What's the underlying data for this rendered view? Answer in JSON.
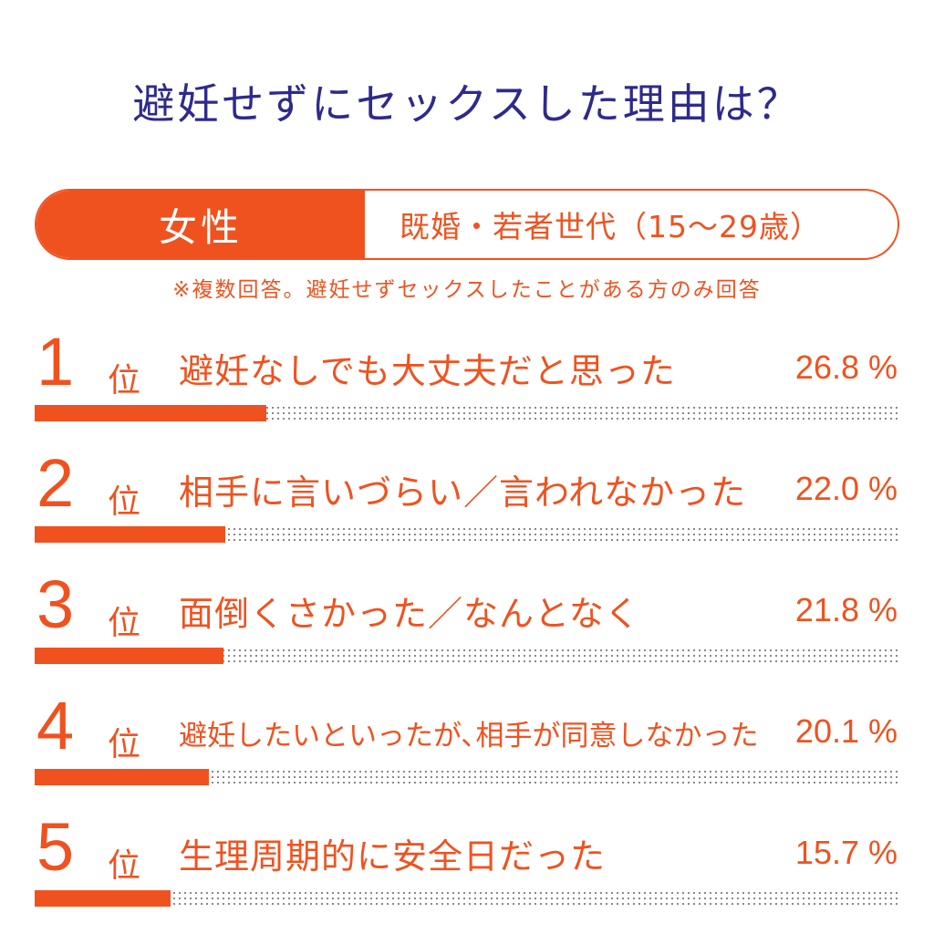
{
  "title": "避妊せずにセックスした理由は？",
  "tag": {
    "gender": "女性",
    "group": "既婚・若者世代（15〜29歳）"
  },
  "note": "※複数回答。避妊せずセックスしたことがある方のみ回答",
  "rank_unit": "位",
  "colors": {
    "accent": "#f0521f",
    "title": "#2e2a8c",
    "track": "#777777"
  },
  "chart_data": {
    "type": "bar",
    "title": "避妊せずにセックスした理由は？",
    "subtitle": "女性 既婚・若者世代（15〜29歳）",
    "unit": "%",
    "xlim": [
      0,
      100
    ],
    "categories": [
      "避妊なしでも大丈夫だと思った",
      "相手に言いづらい／言われなかった",
      "面倒くさかった／なんとなく",
      "避妊したいといったが､相手が同意しなかった",
      "生理周期的に安全日だった"
    ],
    "values": [
      26.8,
      22.0,
      21.8,
      20.1,
      15.7
    ],
    "items": [
      {
        "rank": "1",
        "label": "避妊なしでも大丈夫だと思った",
        "value": 26.8,
        "value_text": "26.8 %"
      },
      {
        "rank": "2",
        "label": "相手に言いづらい／言われなかった",
        "value": 22.0,
        "value_text": "22.0 %"
      },
      {
        "rank": "3",
        "label": "面倒くさかった／なんとなく",
        "value": 21.8,
        "value_text": "21.8 %"
      },
      {
        "rank": "4",
        "label": "避妊したいといったが､相手が同意しなかった",
        "value": 20.1,
        "value_text": "20.1 %"
      },
      {
        "rank": "5",
        "label": "生理周期的に安全日だった",
        "value": 15.7,
        "value_text": "15.7 %"
      }
    ]
  }
}
